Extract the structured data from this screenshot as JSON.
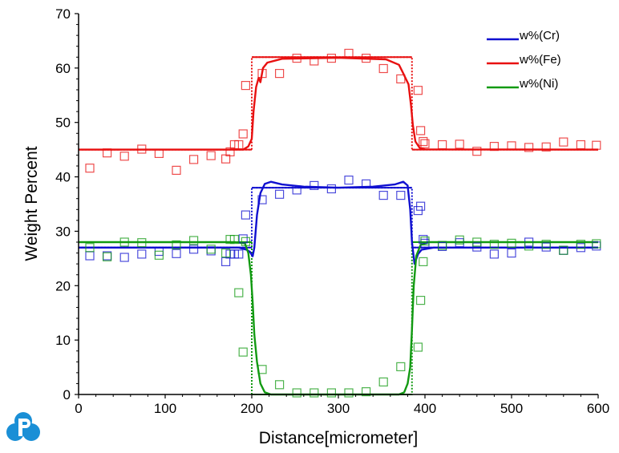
{
  "chart_data": {
    "type": "line",
    "xlabel": "Distance[micrometer]",
    "ylabel": "Weight Percent",
    "xlim": [
      0,
      600
    ],
    "ylim": [
      0,
      70
    ],
    "xticks": [
      0,
      100,
      200,
      300,
      400,
      500,
      600
    ],
    "yticks": [
      0,
      10,
      20,
      30,
      40,
      50,
      60,
      70
    ],
    "grid": false,
    "legend_position": "top-right",
    "series": [
      {
        "name": "w%(Cr)",
        "color": "#1010d0",
        "initial_profile": [
          [
            0,
            27
          ],
          [
            200,
            27
          ],
          [
            200,
            38
          ],
          [
            385,
            38
          ],
          [
            385,
            27
          ],
          [
            600,
            27
          ]
        ],
        "simulated": [
          [
            0,
            27
          ],
          [
            185,
            27
          ],
          [
            194,
            26.6
          ],
          [
            198,
            26.2
          ],
          [
            201,
            25.4
          ],
          [
            203,
            27
          ],
          [
            206,
            33
          ],
          [
            210,
            37
          ],
          [
            215,
            38.7
          ],
          [
            222,
            39.1
          ],
          [
            235,
            38.6
          ],
          [
            260,
            38.2
          ],
          [
            300,
            38.0
          ],
          [
            340,
            38.2
          ],
          [
            365,
            38.6
          ],
          [
            375,
            39.1
          ],
          [
            380,
            38.4
          ],
          [
            383,
            34
          ],
          [
            385,
            28
          ],
          [
            388,
            24
          ],
          [
            392,
            25.8
          ],
          [
            396,
            26.6
          ],
          [
            410,
            27
          ],
          [
            600,
            27
          ]
        ],
        "measured": [
          [
            13,
            25.5
          ],
          [
            33,
            25.5
          ],
          [
            53,
            25.2
          ],
          [
            73,
            25.8
          ],
          [
            93,
            26.3
          ],
          [
            113,
            25.9
          ],
          [
            133,
            26.7
          ],
          [
            153,
            26.4
          ],
          [
            170,
            24.4
          ],
          [
            175,
            25.8
          ],
          [
            180,
            25.8
          ],
          [
            185,
            25.8
          ],
          [
            190,
            28.6
          ],
          [
            193,
            33.0
          ],
          [
            212,
            35.8
          ],
          [
            232,
            36.8
          ],
          [
            252,
            37.6
          ],
          [
            272,
            38.4
          ],
          [
            292,
            37.8
          ],
          [
            312,
            39.4
          ],
          [
            332,
            38.7
          ],
          [
            352,
            36.6
          ],
          [
            372,
            36.6
          ],
          [
            392,
            33.8
          ],
          [
            395,
            34.6
          ],
          [
            398,
            28.5
          ],
          [
            400,
            27.8
          ],
          [
            420,
            27.2
          ],
          [
            440,
            27.9
          ],
          [
            460,
            27.1
          ],
          [
            480,
            25.8
          ],
          [
            500,
            26.0
          ],
          [
            520,
            28.0
          ],
          [
            540,
            27.1
          ],
          [
            560,
            26.5
          ],
          [
            580,
            27.0
          ],
          [
            598,
            27.3
          ]
        ]
      },
      {
        "name": "w%(Fe)",
        "color": "#e81010",
        "initial_profile": [
          [
            0,
            45
          ],
          [
            200,
            45
          ],
          [
            200,
            62
          ],
          [
            385,
            62
          ],
          [
            385,
            45
          ],
          [
            600,
            45
          ]
        ],
        "simulated": [
          [
            0,
            45
          ],
          [
            190,
            45
          ],
          [
            196,
            45.6
          ],
          [
            200,
            47
          ],
          [
            202,
            52
          ],
          [
            205,
            56.5
          ],
          [
            208,
            58.2
          ],
          [
            210,
            57.4
          ],
          [
            213,
            60
          ],
          [
            218,
            61
          ],
          [
            235,
            61.7
          ],
          [
            300,
            61.9
          ],
          [
            355,
            61.6
          ],
          [
            370,
            60.6
          ],
          [
            375,
            59
          ],
          [
            378,
            58
          ],
          [
            381,
            57
          ],
          [
            384,
            53
          ],
          [
            386,
            49.5
          ],
          [
            389,
            46.5
          ],
          [
            394,
            45.3
          ],
          [
            400,
            45.05
          ],
          [
            600,
            45
          ]
        ],
        "measured": [
          [
            13,
            41.6
          ],
          [
            33,
            44.4
          ],
          [
            53,
            43.8
          ],
          [
            73,
            45.1
          ],
          [
            93,
            44.3
          ],
          [
            113,
            41.2
          ],
          [
            133,
            43.2
          ],
          [
            153,
            43.9
          ],
          [
            170,
            43.3
          ],
          [
            175,
            44.6
          ],
          [
            180,
            45.9
          ],
          [
            185,
            45.9
          ],
          [
            190,
            47.9
          ],
          [
            193,
            56.8
          ],
          [
            212,
            59.0
          ],
          [
            232,
            59.0
          ],
          [
            252,
            61.8
          ],
          [
            272,
            61.3
          ],
          [
            292,
            61.8
          ],
          [
            312,
            62.7
          ],
          [
            332,
            61.8
          ],
          [
            352,
            59.9
          ],
          [
            372,
            58.0
          ],
          [
            392,
            55.9
          ],
          [
            395,
            48.5
          ],
          [
            398,
            46.5
          ],
          [
            400,
            46.1
          ],
          [
            420,
            45.9
          ],
          [
            440,
            46.0
          ],
          [
            460,
            44.7
          ],
          [
            480,
            45.6
          ],
          [
            500,
            45.7
          ],
          [
            520,
            45.4
          ],
          [
            540,
            45.5
          ],
          [
            560,
            46.4
          ],
          [
            580,
            45.9
          ],
          [
            598,
            45.8
          ]
        ]
      },
      {
        "name": "w%(Ni)",
        "color": "#129a12",
        "initial_profile": [
          [
            0,
            28
          ],
          [
            200,
            28
          ],
          [
            200,
            0
          ],
          [
            385,
            0
          ],
          [
            385,
            28
          ],
          [
            600,
            28
          ]
        ],
        "simulated": [
          [
            0,
            28
          ],
          [
            180,
            28
          ],
          [
            192,
            27.8
          ],
          [
            196,
            26
          ],
          [
            199,
            22
          ],
          [
            201,
            17
          ],
          [
            203,
            11
          ],
          [
            206,
            6
          ],
          [
            210,
            2
          ],
          [
            215,
            0.4
          ],
          [
            222,
            0
          ],
          [
            370,
            0
          ],
          [
            376,
            0.4
          ],
          [
            380,
            2
          ],
          [
            383,
            5
          ],
          [
            385,
            12
          ],
          [
            387,
            20
          ],
          [
            390,
            25.5
          ],
          [
            395,
            27.5
          ],
          [
            405,
            28
          ],
          [
            600,
            28
          ]
        ],
        "measured": [
          [
            13,
            27.0
          ],
          [
            33,
            25.3
          ],
          [
            53,
            28.0
          ],
          [
            73,
            27.9
          ],
          [
            93,
            25.6
          ],
          [
            113,
            27.5
          ],
          [
            133,
            28.3
          ],
          [
            153,
            26.7
          ],
          [
            170,
            26.0
          ],
          [
            175,
            28.5
          ],
          [
            180,
            28.5
          ],
          [
            185,
            18.7
          ],
          [
            190,
            7.8
          ],
          [
            193,
            28.1
          ],
          [
            212,
            4.6
          ],
          [
            232,
            1.8
          ],
          [
            252,
            0.3
          ],
          [
            272,
            0.3
          ],
          [
            292,
            0.3
          ],
          [
            312,
            0.3
          ],
          [
            332,
            0.5
          ],
          [
            352,
            2.3
          ],
          [
            372,
            5.1
          ],
          [
            392,
            8.7
          ],
          [
            395,
            17.3
          ],
          [
            398,
            24.4
          ],
          [
            400,
            28.2
          ],
          [
            420,
            27.4
          ],
          [
            440,
            28.4
          ],
          [
            460,
            28.0
          ],
          [
            480,
            27.6
          ],
          [
            500,
            27.8
          ],
          [
            520,
            27.3
          ],
          [
            540,
            27.6
          ],
          [
            560,
            26.5
          ],
          [
            580,
            27.6
          ],
          [
            598,
            27.7
          ]
        ]
      }
    ]
  }
}
